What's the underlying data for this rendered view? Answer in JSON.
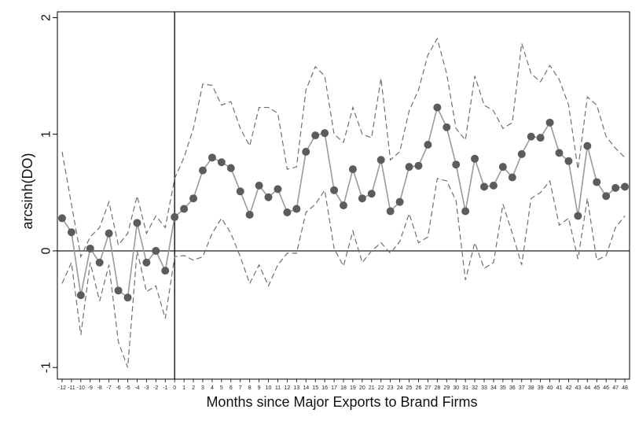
{
  "chart_data": {
    "type": "line",
    "title": "",
    "xlabel": "Months since Major Exports to Brand Firms",
    "ylabel": "arcsinh(DO)",
    "xlim": [
      -12.5,
      48.5
    ],
    "ylim": [
      -1.1,
      2.05
    ],
    "yticks": [
      -1,
      0,
      1,
      2
    ],
    "xticks": [
      -12,
      -11,
      -10,
      -9,
      -8,
      -7,
      -6,
      -5,
      -4,
      -3,
      -2,
      -1,
      0,
      1,
      2,
      3,
      4,
      5,
      6,
      7,
      8,
      9,
      10,
      11,
      12,
      13,
      14,
      15,
      16,
      17,
      18,
      19,
      20,
      21,
      22,
      23,
      24,
      25,
      26,
      27,
      28,
      29,
      30,
      31,
      32,
      33,
      34,
      35,
      36,
      37,
      38,
      39,
      40,
      41,
      42,
      43,
      44,
      45,
      46,
      47,
      48
    ],
    "reference_lines": {
      "x": 0,
      "y": 0
    },
    "grid": false,
    "series": [
      {
        "role": "estimate",
        "x": [
          -12,
          -11,
          -10,
          -9,
          -8,
          -7,
          -6,
          -5,
          -4,
          -3,
          -2,
          -1,
          0,
          1,
          2,
          3,
          4,
          5,
          6,
          7,
          8,
          9,
          10,
          11,
          12,
          13,
          14,
          15,
          16,
          17,
          18,
          19,
          20,
          21,
          22,
          23,
          24,
          25,
          26,
          27,
          28,
          29,
          30,
          31,
          32,
          33,
          34,
          35,
          36,
          37,
          38,
          39,
          40,
          41,
          42,
          43,
          44,
          45,
          46,
          47,
          48
        ],
        "values": [
          0.28,
          0.16,
          -0.38,
          0.02,
          -0.1,
          0.15,
          -0.34,
          -0.4,
          0.24,
          -0.1,
          0.0,
          -0.17,
          0.29,
          0.36,
          0.45,
          0.69,
          0.8,
          0.76,
          0.71,
          0.51,
          0.31,
          0.56,
          0.46,
          0.53,
          0.33,
          0.36,
          0.85,
          0.99,
          1.01,
          0.52,
          0.39,
          0.7,
          0.45,
          0.49,
          0.78,
          0.34,
          0.42,
          0.72,
          0.73,
          0.91,
          1.23,
          1.06,
          0.74,
          0.34,
          0.79,
          0.55,
          0.56,
          0.72,
          0.63,
          0.83,
          0.98,
          0.97,
          1.1,
          0.84,
          0.77,
          0.3,
          0.9,
          0.59,
          0.47,
          0.54,
          0.55
        ]
      },
      {
        "role": "upper-ci",
        "x": [
          -12,
          -11,
          -10,
          -9,
          -8,
          -7,
          -6,
          -5,
          -4,
          -3,
          -2,
          -1,
          0,
          1,
          2,
          3,
          4,
          5,
          6,
          7,
          8,
          9,
          10,
          11,
          12,
          13,
          14,
          15,
          16,
          17,
          18,
          19,
          20,
          21,
          22,
          23,
          24,
          25,
          26,
          27,
          28,
          29,
          30,
          31,
          32,
          33,
          34,
          35,
          36,
          37,
          38,
          39,
          40,
          41,
          42,
          43,
          44,
          45,
          46,
          47,
          48
        ],
        "values": [
          0.85,
          0.4,
          -0.05,
          0.12,
          0.2,
          0.42,
          0.05,
          0.15,
          0.47,
          0.15,
          0.3,
          0.2,
          0.62,
          0.8,
          1.05,
          1.43,
          1.42,
          1.25,
          1.28,
          1.05,
          0.9,
          1.23,
          1.23,
          1.18,
          0.7,
          0.72,
          1.38,
          1.58,
          1.5,
          1.0,
          0.93,
          1.23,
          1.0,
          0.97,
          1.48,
          0.78,
          0.85,
          1.2,
          1.38,
          1.68,
          1.82,
          1.52,
          1.05,
          0.95,
          1.5,
          1.25,
          1.2,
          1.05,
          1.1,
          1.78,
          1.52,
          1.45,
          1.59,
          1.47,
          1.25,
          0.7,
          1.32,
          1.25,
          0.98,
          0.88,
          0.8
        ]
      },
      {
        "role": "lower-ci",
        "x": [
          -12,
          -11,
          -10,
          -9,
          -8,
          -7,
          -6,
          -5,
          -4,
          -3,
          -2,
          -1,
          0,
          1,
          2,
          3,
          4,
          5,
          6,
          7,
          8,
          9,
          10,
          11,
          12,
          13,
          14,
          15,
          16,
          17,
          18,
          19,
          20,
          21,
          22,
          23,
          24,
          25,
          26,
          27,
          28,
          29,
          30,
          31,
          32,
          33,
          34,
          35,
          36,
          37,
          38,
          39,
          40,
          41,
          42,
          43,
          44,
          45,
          46,
          47,
          48
        ],
        "values": [
          -0.28,
          -0.1,
          -0.72,
          -0.1,
          -0.43,
          -0.12,
          -0.78,
          -1.0,
          0.0,
          -0.35,
          -0.3,
          -0.58,
          -0.05,
          -0.04,
          -0.08,
          -0.05,
          0.15,
          0.28,
          0.15,
          -0.05,
          -0.28,
          -0.12,
          -0.3,
          -0.12,
          -0.02,
          -0.02,
          0.33,
          0.4,
          0.52,
          0.02,
          -0.13,
          0.17,
          -0.1,
          0.0,
          0.07,
          -0.02,
          0.08,
          0.32,
          0.07,
          0.12,
          0.62,
          0.6,
          0.43,
          -0.25,
          0.07,
          -0.15,
          -0.1,
          0.4,
          0.15,
          -0.12,
          0.45,
          0.5,
          0.6,
          0.22,
          0.28,
          -0.07,
          0.45,
          -0.08,
          -0.04,
          0.2,
          0.3
        ]
      }
    ],
    "colors": {
      "estimate_line": "#9a9a9a",
      "estimate_marker": "#5c5c5c",
      "ci_line": "#707070",
      "zero_line": "#555555",
      "event_line": "#000000",
      "frame": "#000000"
    }
  }
}
